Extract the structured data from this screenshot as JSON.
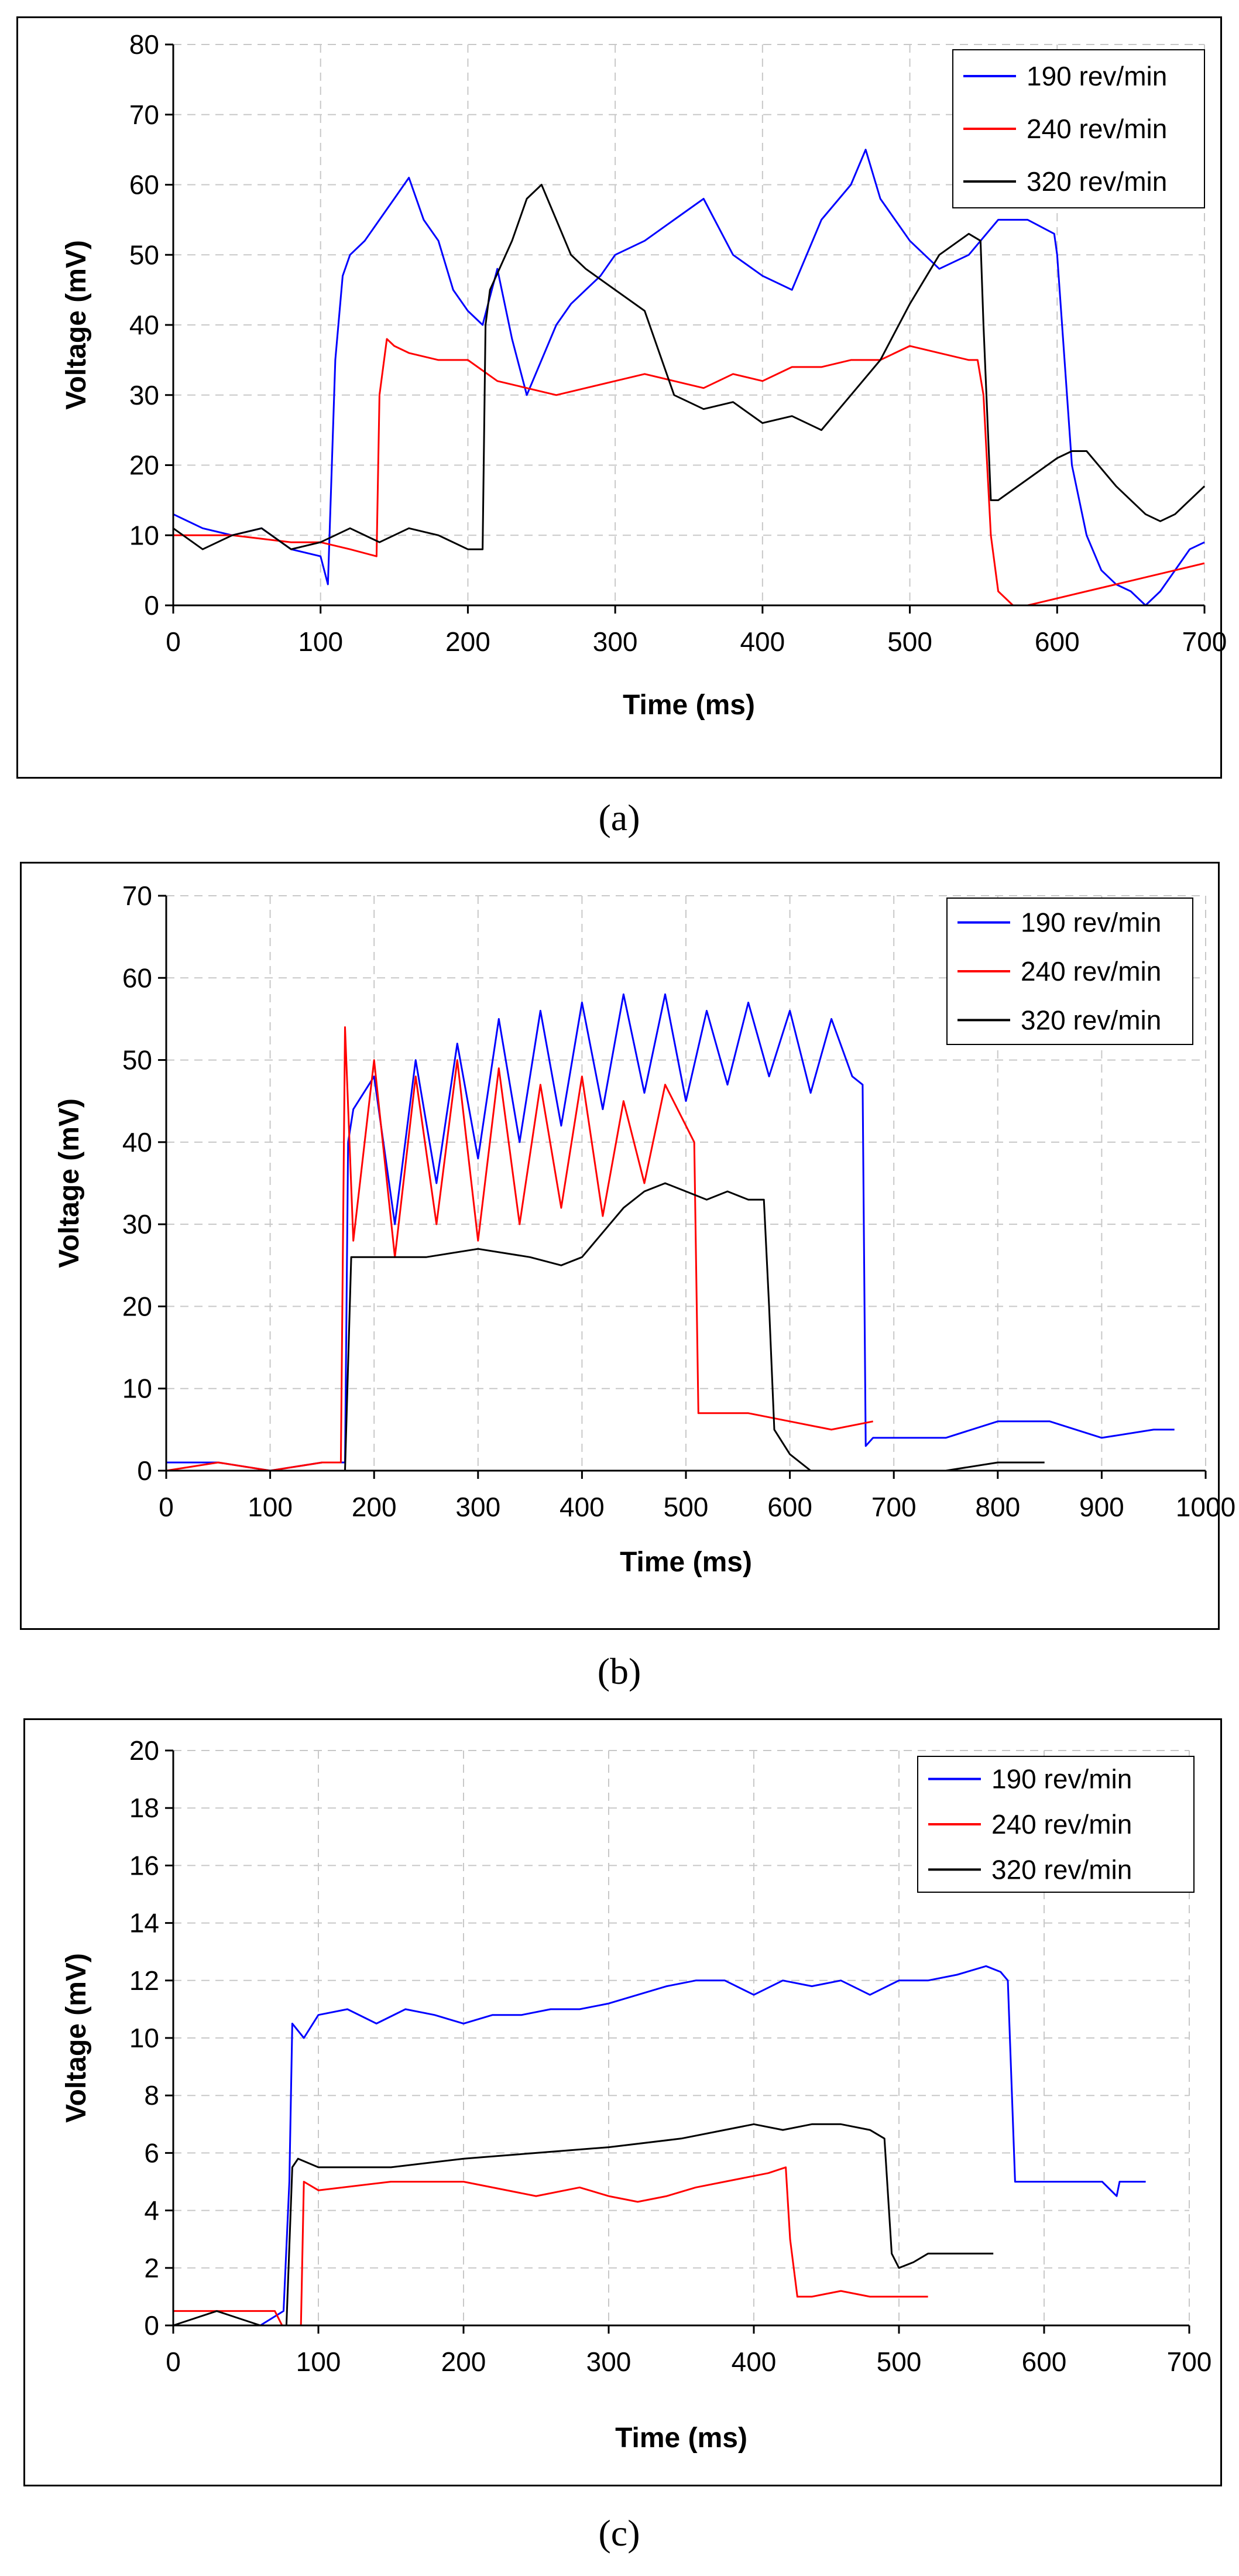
{
  "chart_data": [
    {
      "type": "line",
      "caption": "(a)",
      "xlabel": "Time (ms)",
      "ylabel": "Voltage (mV)",
      "xlim": [
        0,
        700
      ],
      "ylim": [
        0,
        80
      ],
      "xticks": [
        "0",
        "100",
        "200",
        "300",
        "400",
        "500",
        "600",
        "700"
      ],
      "yticks": [
        "0",
        "10",
        "20",
        "30",
        "40",
        "50",
        "60",
        "70",
        "80"
      ],
      "grid": true,
      "legend": "top-right",
      "series": [
        {
          "name": "190 rev/min",
          "color": "#0000ff",
          "x": [
            0,
            20,
            40,
            60,
            80,
            100,
            105,
            110,
            115,
            120,
            130,
            140,
            150,
            160,
            170,
            180,
            190,
            200,
            210,
            220,
            230,
            240,
            250,
            260,
            270,
            280,
            290,
            300,
            320,
            340,
            360,
            380,
            400,
            420,
            440,
            460,
            470,
            480,
            500,
            520,
            540,
            560,
            580,
            598,
            600,
            605,
            610,
            620,
            630,
            640,
            650,
            660,
            670,
            680,
            690,
            700
          ],
          "y": [
            13,
            11,
            10,
            11,
            8,
            7,
            3,
            35,
            47,
            50,
            52,
            55,
            58,
            61,
            55,
            52,
            45,
            42,
            40,
            48,
            38,
            30,
            35,
            40,
            43,
            45,
            47,
            50,
            52,
            55,
            58,
            50,
            47,
            45,
            55,
            60,
            65,
            58,
            52,
            48,
            50,
            55,
            55,
            53,
            50,
            35,
            20,
            10,
            5,
            3,
            2,
            0,
            2,
            5,
            8,
            9
          ]
        },
        {
          "name": "240 rev/min",
          "color": "#ff0000",
          "x": [
            0,
            40,
            80,
            100,
            120,
            138,
            140,
            145,
            150,
            160,
            180,
            200,
            220,
            240,
            260,
            280,
            300,
            320,
            340,
            360,
            380,
            400,
            420,
            440,
            460,
            480,
            500,
            520,
            540,
            546,
            550,
            555,
            560,
            570,
            580,
            600,
            620,
            640,
            660,
            680,
            700
          ],
          "y": [
            10,
            10,
            9,
            9,
            8,
            7,
            30,
            38,
            37,
            36,
            35,
            35,
            32,
            31,
            30,
            31,
            32,
            33,
            32,
            31,
            33,
            32,
            34,
            34,
            35,
            35,
            37,
            36,
            35,
            35,
            30,
            10,
            2,
            0,
            0,
            1,
            2,
            3,
            4,
            5,
            6
          ]
        },
        {
          "name": "320 rev/min",
          "color": "#000000",
          "x": [
            0,
            20,
            40,
            60,
            80,
            100,
            120,
            140,
            160,
            180,
            200,
            210,
            212,
            215,
            230,
            240,
            250,
            260,
            270,
            280,
            300,
            320,
            340,
            360,
            380,
            400,
            420,
            440,
            460,
            480,
            500,
            520,
            540,
            548,
            550,
            555,
            560,
            580,
            600,
            610,
            620,
            640,
            660,
            670,
            680,
            700
          ],
          "y": [
            11,
            8,
            10,
            11,
            8,
            9,
            11,
            9,
            11,
            10,
            8,
            8,
            40,
            45,
            52,
            58,
            60,
            55,
            50,
            48,
            45,
            42,
            30,
            28,
            29,
            26,
            27,
            25,
            30,
            35,
            43,
            50,
            53,
            52,
            40,
            15,
            15,
            18,
            21,
            22,
            22,
            17,
            13,
            12,
            13,
            17
          ]
        }
      ]
    },
    {
      "type": "line",
      "caption": "(b)",
      "xlabel": "Time (ms)",
      "ylabel": "Voltage (mV)",
      "xlim": [
        0,
        1000
      ],
      "ylim": [
        0,
        70
      ],
      "xticks": [
        "0",
        "100",
        "200",
        "300",
        "400",
        "500",
        "600",
        "700",
        "800",
        "900",
        "1000"
      ],
      "yticks": [
        "0",
        "10",
        "20",
        "30",
        "40",
        "50",
        "60",
        "70"
      ],
      "grid": true,
      "legend": "top-right",
      "series": [
        {
          "name": "190 rev/min",
          "color": "#0000ff",
          "x": [
            0,
            50,
            100,
            150,
            172,
            175,
            180,
            200,
            220,
            240,
            260,
            280,
            300,
            320,
            340,
            360,
            380,
            400,
            420,
            440,
            460,
            480,
            500,
            520,
            540,
            560,
            580,
            600,
            620,
            640,
            660,
            670,
            673,
            680,
            700,
            750,
            800,
            850,
            900,
            950,
            970
          ],
          "y": [
            1,
            1,
            0,
            1,
            1,
            40,
            44,
            48,
            30,
            50,
            35,
            52,
            38,
            55,
            40,
            56,
            42,
            57,
            44,
            58,
            46,
            58,
            45,
            56,
            47,
            57,
            48,
            56,
            46,
            55,
            48,
            47,
            3,
            4,
            4,
            4,
            6,
            6,
            4,
            5,
            5
          ]
        },
        {
          "name": "240 rev/min",
          "color": "#ff0000",
          "x": [
            0,
            50,
            100,
            150,
            168,
            172,
            180,
            200,
            220,
            240,
            260,
            280,
            300,
            320,
            340,
            360,
            380,
            400,
            420,
            440,
            460,
            480,
            500,
            508,
            512,
            520,
            560,
            600,
            640,
            680
          ],
          "y": [
            0,
            1,
            0,
            1,
            1,
            54,
            28,
            50,
            26,
            48,
            30,
            50,
            28,
            49,
            30,
            47,
            32,
            48,
            31,
            45,
            35,
            47,
            42,
            40,
            7,
            7,
            7,
            6,
            5,
            6
          ]
        },
        {
          "name": "320 rev/min",
          "color": "#000000",
          "x": [
            0,
            50,
            100,
            150,
            172,
            178,
            200,
            250,
            300,
            350,
            380,
            400,
            420,
            440,
            460,
            480,
            500,
            520,
            540,
            560,
            575,
            580,
            585,
            600,
            620,
            650,
            700,
            750,
            800,
            845
          ],
          "y": [
            0,
            0,
            0,
            0,
            0,
            26,
            26,
            26,
            27,
            26,
            25,
            26,
            29,
            32,
            34,
            35,
            34,
            33,
            34,
            33,
            33,
            20,
            5,
            2,
            0,
            0,
            0,
            0,
            1,
            1
          ]
        }
      ]
    },
    {
      "type": "line",
      "caption": "(c)",
      "xlabel": "Time (ms)",
      "ylabel": "Voltage (mV)",
      "xlim": [
        0,
        700
      ],
      "ylim": [
        0,
        20
      ],
      "xticks": [
        "0",
        "100",
        "200",
        "300",
        "400",
        "500",
        "600",
        "700"
      ],
      "yticks": [
        "0",
        "2",
        "4",
        "6",
        "8",
        "10",
        "12",
        "14",
        "16",
        "18",
        "20"
      ],
      "grid": true,
      "legend": "top-right",
      "series": [
        {
          "name": "190 rev/min",
          "color": "#0000ff",
          "x": [
            0,
            20,
            40,
            60,
            76,
            80,
            82,
            90,
            100,
            120,
            140,
            160,
            180,
            200,
            220,
            240,
            260,
            280,
            300,
            320,
            340,
            360,
            380,
            400,
            420,
            440,
            460,
            480,
            500,
            520,
            540,
            560,
            570,
            575,
            580,
            600,
            640,
            650,
            652,
            655,
            670
          ],
          "y": [
            0,
            0,
            0,
            0,
            0.5,
            5,
            10.5,
            10,
            10.8,
            11,
            10.5,
            11,
            10.8,
            10.5,
            10.8,
            10.8,
            11,
            11,
            11.2,
            11.5,
            11.8,
            12,
            12,
            11.5,
            12,
            11.8,
            12,
            11.5,
            12,
            12,
            12.2,
            12.5,
            12.3,
            12,
            5,
            5,
            5,
            4.5,
            5,
            5,
            5
          ]
        },
        {
          "name": "240 rev/min",
          "color": "#ff0000",
          "x": [
            0,
            40,
            70,
            75,
            88,
            90,
            100,
            150,
            200,
            250,
            280,
            300,
            320,
            340,
            360,
            380,
            400,
            410,
            422,
            425,
            430,
            440,
            460,
            480,
            500,
            520
          ],
          "y": [
            0.5,
            0.5,
            0.5,
            0,
            0,
            5,
            4.7,
            5,
            5,
            4.5,
            4.8,
            4.5,
            4.3,
            4.5,
            4.8,
            5,
            5.2,
            5.3,
            5.5,
            3,
            1,
            1,
            1.2,
            1,
            1,
            1
          ]
        },
        {
          "name": "320 rev/min",
          "color": "#000000",
          "x": [
            0,
            30,
            60,
            78,
            82,
            86,
            100,
            150,
            200,
            250,
            300,
            350,
            380,
            400,
            420,
            440,
            460,
            480,
            490,
            495,
            500,
            510,
            520,
            540,
            565
          ],
          "y": [
            0,
            0.5,
            0,
            0,
            5.5,
            5.8,
            5.5,
            5.5,
            5.8,
            6,
            6.2,
            6.5,
            6.8,
            7,
            6.8,
            7,
            7,
            6.8,
            6.5,
            2.5,
            2,
            2.2,
            2.5,
            2.5,
            2.5
          ]
        }
      ]
    }
  ]
}
